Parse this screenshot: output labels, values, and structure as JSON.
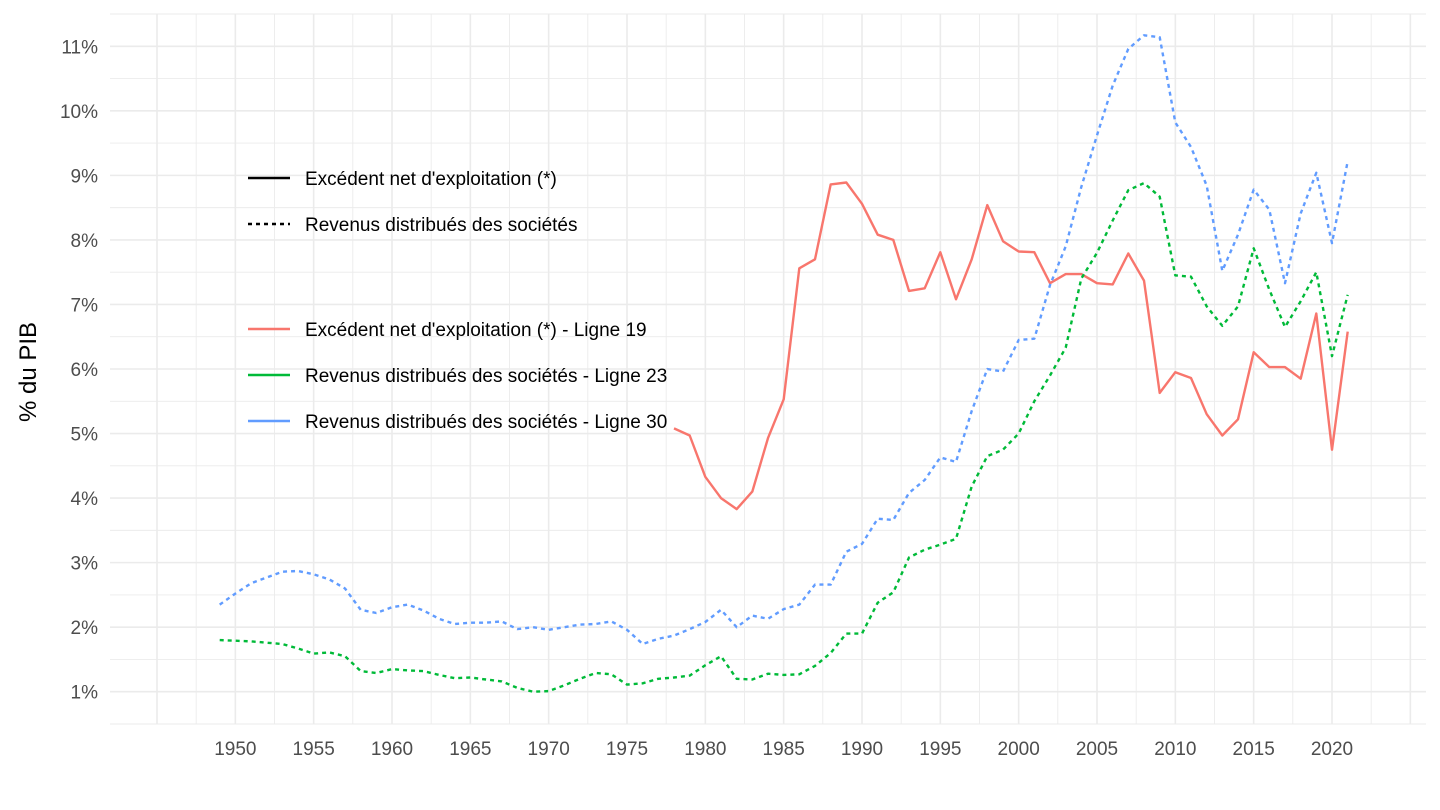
{
  "chart_data": {
    "type": "line",
    "title": "",
    "xlabel": "",
    "ylabel": "% du PIB",
    "xlim": [
      1942,
      2026
    ],
    "ylim": [
      0.5,
      11.5
    ],
    "x_ticks": [
      1950,
      1955,
      1960,
      1965,
      1970,
      1975,
      1980,
      1985,
      1990,
      1995,
      2000,
      2005,
      2010,
      2015,
      2020
    ],
    "y_ticks": [
      1,
      2,
      3,
      4,
      5,
      6,
      7,
      8,
      9,
      10,
      11
    ],
    "x_tick_labels": [
      "1950",
      "1955",
      "1960",
      "1965",
      "1970",
      "1975",
      "1980",
      "1985",
      "1990",
      "1995",
      "2000",
      "2005",
      "2010",
      "2015",
      "2020"
    ],
    "y_tick_labels": [
      "1%",
      "2%",
      "3%",
      "4%",
      "5%",
      "6%",
      "7%",
      "8%",
      "9%",
      "10%",
      "11%"
    ],
    "grid": true,
    "legend_placement": "top-left",
    "linetype_legend": [
      {
        "label": "Excédent net d'exploitation (*)",
        "dash": "solid"
      },
      {
        "label": "Revenus distribués des sociétés",
        "dash": "dotted"
      }
    ],
    "series": [
      {
        "name": "Excédent net d'exploitation (*) - Ligne 19",
        "color": "#F8766D",
        "dash": "solid",
        "x": [
          1978,
          1979,
          1980,
          1981,
          1982,
          1983,
          1984,
          1985,
          1986,
          1987,
          1988,
          1989,
          1990,
          1991,
          1992,
          1993,
          1994,
          1995,
          1996,
          1997,
          1998,
          1999,
          2000,
          2001,
          2002,
          2003,
          2004,
          2005,
          2006,
          2007,
          2008,
          2009,
          2010,
          2011,
          2012,
          2013,
          2014,
          2015,
          2016,
          2017,
          2018,
          2019,
          2020,
          2021
        ],
        "values": [
          5.08,
          4.97,
          4.33,
          4.0,
          3.83,
          4.1,
          4.93,
          5.53,
          7.56,
          7.7,
          8.86,
          8.89,
          8.56,
          8.08,
          8.0,
          7.21,
          7.25,
          7.81,
          7.08,
          7.7,
          8.54,
          7.98,
          7.82,
          7.81,
          7.33,
          7.47,
          7.47,
          7.33,
          7.31,
          7.79,
          7.37,
          5.63,
          5.95,
          5.86,
          5.3,
          4.97,
          5.22,
          6.26,
          6.03,
          6.03,
          5.85,
          6.86,
          4.75,
          6.58
        ]
      },
      {
        "name": "Revenus distribués des sociétés - Ligne 23",
        "color": "#00BA38",
        "dash": "dotted",
        "x": [
          1949,
          1950,
          1951,
          1952,
          1953,
          1954,
          1955,
          1956,
          1957,
          1958,
          1959,
          1960,
          1961,
          1962,
          1963,
          1964,
          1965,
          1966,
          1967,
          1968,
          1969,
          1970,
          1971,
          1972,
          1973,
          1974,
          1975,
          1976,
          1977,
          1978,
          1979,
          1980,
          1981,
          1982,
          1983,
          1984,
          1985,
          1986,
          1987,
          1988,
          1989,
          1990,
          1991,
          1992,
          1993,
          1994,
          1995,
          1996,
          1997,
          1998,
          1999,
          2000,
          2001,
          2002,
          2003,
          2004,
          2005,
          2006,
          2007,
          2008,
          2009,
          2010,
          2011,
          2012,
          2013,
          2014,
          2015,
          2016,
          2017,
          2018,
          2019,
          2020,
          2021
        ],
        "values": [
          1.8,
          1.79,
          1.78,
          1.76,
          1.74,
          1.67,
          1.59,
          1.61,
          1.55,
          1.32,
          1.29,
          1.35,
          1.33,
          1.32,
          1.26,
          1.21,
          1.22,
          1.19,
          1.16,
          1.06,
          1.0,
          1.01,
          1.1,
          1.2,
          1.29,
          1.27,
          1.11,
          1.13,
          1.2,
          1.22,
          1.25,
          1.41,
          1.55,
          1.2,
          1.19,
          1.28,
          1.26,
          1.27,
          1.4,
          1.6,
          1.9,
          1.9,
          2.38,
          2.54,
          3.08,
          3.2,
          3.28,
          3.37,
          4.18,
          4.65,
          4.75,
          5.0,
          5.5,
          5.9,
          6.33,
          7.4,
          7.8,
          8.3,
          8.77,
          8.88,
          8.67,
          7.45,
          7.43,
          6.97,
          6.67,
          6.97,
          7.87,
          7.23,
          6.65,
          7.05,
          7.5,
          6.2,
          7.15
        ]
      },
      {
        "name": "Revenus distribués des sociétés - Ligne 30",
        "color": "#619CFF",
        "dash": "dotted",
        "x": [
          1949,
          1950,
          1951,
          1952,
          1953,
          1954,
          1955,
          1956,
          1957,
          1958,
          1959,
          1960,
          1961,
          1962,
          1963,
          1964,
          1965,
          1966,
          1967,
          1968,
          1969,
          1970,
          1971,
          1972,
          1973,
          1974,
          1975,
          1976,
          1977,
          1978,
          1979,
          1980,
          1981,
          1982,
          1983,
          1984,
          1985,
          1986,
          1987,
          1988,
          1989,
          1990,
          1991,
          1992,
          1993,
          1994,
          1995,
          1996,
          1997,
          1998,
          1999,
          2000,
          2001,
          2002,
          2003,
          2004,
          2005,
          2006,
          2007,
          2008,
          2009,
          2010,
          2011,
          2012,
          2013,
          2014,
          2015,
          2016,
          2017,
          2018,
          2019,
          2020,
          2021
        ],
        "values": [
          2.35,
          2.52,
          2.68,
          2.77,
          2.86,
          2.87,
          2.82,
          2.74,
          2.6,
          2.27,
          2.22,
          2.31,
          2.35,
          2.26,
          2.13,
          2.05,
          2.07,
          2.07,
          2.09,
          1.97,
          2.0,
          1.96,
          2.0,
          2.04,
          2.05,
          2.09,
          1.96,
          1.74,
          1.82,
          1.87,
          1.97,
          2.08,
          2.27,
          2.0,
          2.18,
          2.13,
          2.28,
          2.35,
          2.66,
          2.66,
          3.17,
          3.29,
          3.68,
          3.66,
          4.08,
          4.28,
          4.63,
          4.56,
          5.35,
          6.0,
          5.96,
          6.45,
          6.47,
          7.3,
          7.9,
          8.82,
          9.62,
          10.39,
          10.96,
          11.17,
          11.14,
          9.82,
          9.44,
          8.84,
          7.52,
          8.08,
          8.78,
          8.47,
          7.33,
          8.41,
          9.04,
          7.95,
          9.22
        ]
      }
    ]
  }
}
